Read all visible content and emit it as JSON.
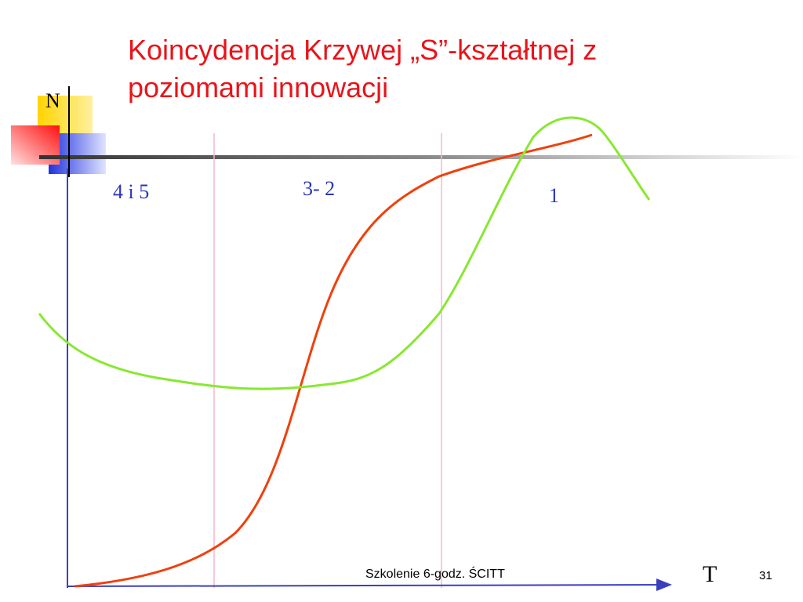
{
  "slide": {
    "title": "Koincydencja Krzywej „S”-kształtnej z poziomami innowacji",
    "axes": {
      "y": "N",
      "x": "T"
    },
    "regions": [
      "4 i 5",
      "3- 2",
      "1"
    ],
    "footer": "Szkolenie 6-godz. ŚCITT",
    "page_number": "31"
  }
}
